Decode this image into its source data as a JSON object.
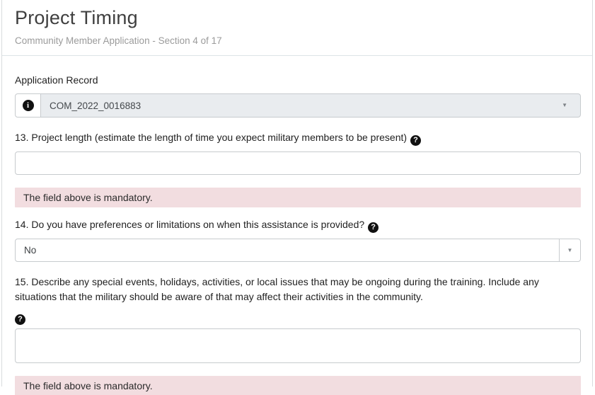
{
  "header": {
    "title": "Project Timing",
    "subtitle": "Community Member Application - Section 4 of 17"
  },
  "record": {
    "label": "Application Record",
    "value": "COM_2022_0016883"
  },
  "icons": {
    "info": "i",
    "help": "?",
    "dropdown_arrow": "▼"
  },
  "questions": {
    "q13": {
      "label": "13. Project length (estimate the length of time you expect military members to be present)",
      "value": "",
      "error": "The field above is mandatory."
    },
    "q14": {
      "label": "14. Do you have preferences or limitations on when this assistance is provided?",
      "value": "No"
    },
    "q15": {
      "label": "15. Describe any special events, holidays, activities, or local issues that may be ongoing during the training. Include any situations that the military should be aware of that may affect their activities in the community.",
      "value": "",
      "error": "The field above is mandatory."
    }
  },
  "colors": {
    "error_bg": "#f2dde0",
    "disabled_bg": "#e9ecef",
    "input_border": "#c7cbce"
  }
}
